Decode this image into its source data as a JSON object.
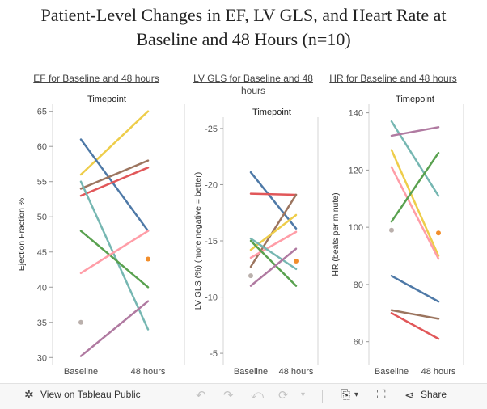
{
  "title_line1": "Patient-Level Changes in EF, LV GLS, and Heart Rate at",
  "title_line2": "Baseline and 48 Hours (n=10)",
  "chart_data": [
    {
      "type": "line",
      "title": "EF for Baseline and 48 hours",
      "header": "Timepoint",
      "ylabel": "Ejection Fraction %",
      "categories": [
        "Baseline",
        "48 hours"
      ],
      "ylim": [
        29,
        66
      ],
      "reversed": false,
      "yticks": [
        30,
        35,
        40,
        45,
        50,
        55,
        60,
        65
      ],
      "series": [
        {
          "color": "#eecd4a",
          "values": [
            56,
            65
          ]
        },
        {
          "color": "#4e79a7",
          "values": [
            61,
            48
          ]
        },
        {
          "color": "#9c755f",
          "values": [
            54,
            58
          ]
        },
        {
          "color": "#e15759",
          "values": [
            53,
            57
          ]
        },
        {
          "color": "#76b7b2",
          "values": [
            55,
            34
          ]
        },
        {
          "color": "#59a14f",
          "values": [
            48,
            40
          ]
        },
        {
          "color": "#ff9da7",
          "values": [
            42,
            48
          ]
        },
        {
          "color": "#b07aa1",
          "values": [
            30.2,
            38
          ]
        },
        {
          "color": "#bab0ac",
          "values": [
            35,
            null
          ]
        },
        {
          "color": "#f28e2b",
          "values": [
            null,
            44
          ]
        }
      ]
    },
    {
      "type": "line",
      "title": "LV GLS for Baseline and 48 hours",
      "header": "Timepoint",
      "ylabel": "LV GLS (%) (more negative = better)",
      "categories": [
        "Baseline",
        "48 hours"
      ],
      "ylim": [
        -26,
        -4
      ],
      "reversed": true,
      "yticks": [
        -25,
        -20,
        -15,
        -10,
        -5
      ],
      "series": [
        {
          "color": "#4e79a7",
          "values": [
            -21.1,
            -16.1
          ]
        },
        {
          "color": "#e15759",
          "values": [
            -19.2,
            -19.1
          ]
        },
        {
          "color": "#9c755f",
          "values": [
            -12.7,
            -19.1
          ]
        },
        {
          "color": "#eecd4a",
          "values": [
            -14.2,
            -17.3
          ]
        },
        {
          "color": "#ff9da7",
          "values": [
            -13.5,
            -15.8
          ]
        },
        {
          "color": "#76b7b2",
          "values": [
            -15.2,
            -12.5
          ]
        },
        {
          "color": "#59a14f",
          "values": [
            -15.0,
            -11.0
          ]
        },
        {
          "color": "#b07aa1",
          "values": [
            -11.0,
            -14.3
          ]
        },
        {
          "color": "#bab0ac",
          "values": [
            -11.9,
            null
          ]
        },
        {
          "color": "#f28e2b",
          "values": [
            null,
            -13.2
          ]
        }
      ]
    },
    {
      "type": "line",
      "title": "HR for Baseline and 48 hours",
      "header": "Timepoint",
      "ylabel": "HR (beats per minute)",
      "categories": [
        "Baseline",
        "48 hours"
      ],
      "ylim": [
        52,
        143
      ],
      "reversed": false,
      "yticks": [
        60,
        80,
        100,
        120,
        140
      ],
      "series": [
        {
          "color": "#76b7b2",
          "values": [
            137,
            111
          ]
        },
        {
          "color": "#b07aa1",
          "values": [
            132,
            135
          ]
        },
        {
          "color": "#eecd4a",
          "values": [
            127,
            90
          ]
        },
        {
          "color": "#ff9da7",
          "values": [
            121,
            89
          ]
        },
        {
          "color": "#59a14f",
          "values": [
            102,
            126
          ]
        },
        {
          "color": "#4e79a7",
          "values": [
            83,
            74
          ]
        },
        {
          "color": "#9c755f",
          "values": [
            71,
            68
          ]
        },
        {
          "color": "#e15759",
          "values": [
            70,
            61
          ]
        },
        {
          "color": "#bab0ac",
          "values": [
            99,
            null
          ]
        },
        {
          "color": "#f28e2b",
          "values": [
            null,
            98
          ]
        }
      ]
    }
  ],
  "toolbar": {
    "view_label": "View on Tableau Public",
    "share_label": "Share",
    "icons": [
      "tableau-logo-icon",
      "undo-icon",
      "redo-icon",
      "revert-icon",
      "refresh-icon",
      "pause-icon",
      "download-icon",
      "fullscreen-icon",
      "share-icon"
    ]
  }
}
